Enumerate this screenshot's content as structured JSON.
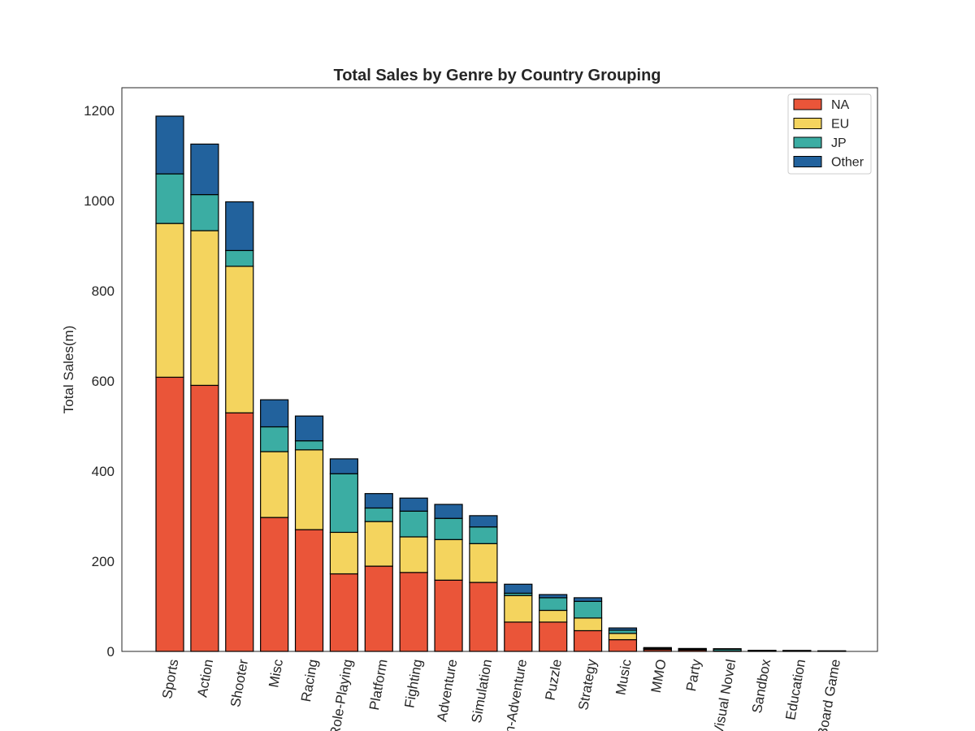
{
  "chart_data": {
    "type": "bar",
    "stacked": true,
    "title": "Total Sales by Genre by Country Grouping",
    "xlabel": "",
    "ylabel": "Total Sales(m)",
    "ylim": [
      0,
      1250
    ],
    "yticks": [
      0,
      200,
      400,
      600,
      800,
      1000,
      1200
    ],
    "grid": false,
    "legend_position": "top-right",
    "categories": [
      "Sports",
      "Action",
      "Shooter",
      "Misc",
      "Racing",
      "Role-Playing",
      "Platform",
      "Fighting",
      "Adventure",
      "Simulation",
      "Action-Adventure",
      "Puzzle",
      "Strategy",
      "Music",
      "MMO",
      "Party",
      "Visual Novel",
      "Sandbox",
      "Education",
      "Board Game"
    ],
    "series": [
      {
        "name": "NA",
        "color": "#ea5539",
        "values": [
          608,
          590,
          529,
          297,
          270,
          172,
          189,
          175,
          158,
          153,
          65,
          65,
          46,
          26,
          4,
          3,
          0.5,
          1,
          1,
          0.5
        ]
      },
      {
        "name": "EU",
        "color": "#f4d45e",
        "values": [
          341,
          343,
          325,
          146,
          177,
          92,
          99,
          79,
          90,
          86,
          59,
          26,
          28,
          14,
          2,
          2,
          0.5,
          0.5,
          0.5,
          0.3
        ]
      },
      {
        "name": "JP",
        "color": "#3bada3",
        "values": [
          110,
          80,
          35,
          55,
          20,
          130,
          30,
          57,
          47,
          37,
          5,
          28,
          37,
          7,
          0.5,
          0.5,
          4,
          0.3,
          0.3,
          0.2
        ]
      },
      {
        "name": "Other",
        "color": "#22629d",
        "values": [
          128,
          112,
          108,
          60,
          55,
          33,
          32,
          29,
          31,
          25,
          20,
          7,
          8,
          5,
          2,
          1,
          1,
          0.5,
          0.3,
          0.2
        ]
      }
    ]
  }
}
